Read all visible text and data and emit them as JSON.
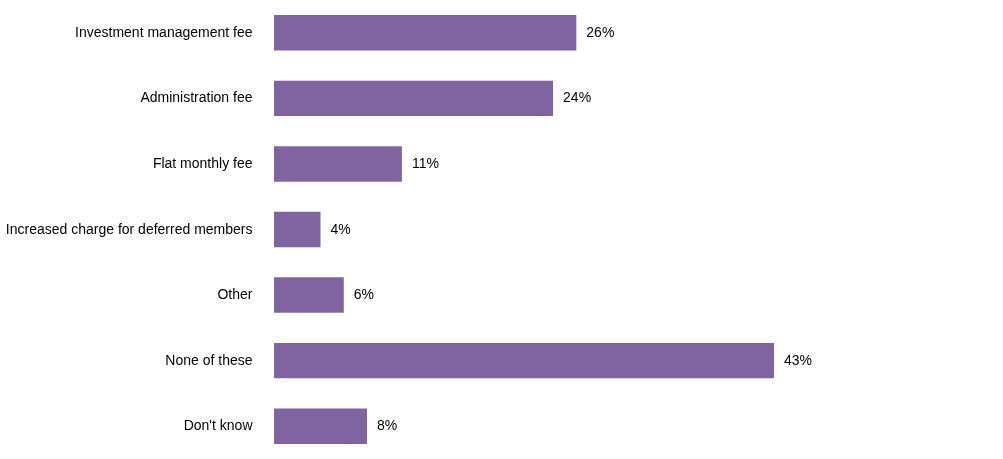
{
  "chart_data": {
    "type": "bar",
    "orientation": "horizontal",
    "categories": [
      "Investment management fee",
      "Administration fee",
      "Flat monthly fee",
      "Increased charge for deferred members",
      "Other",
      "None of these",
      "Don't know"
    ],
    "values": [
      26,
      24,
      11,
      4,
      6,
      43,
      8
    ],
    "color": "#8064a2",
    "value_labels": [
      "26%",
      "24%",
      "11%",
      "4%",
      "6%",
      "43%",
      "8%"
    ]
  }
}
